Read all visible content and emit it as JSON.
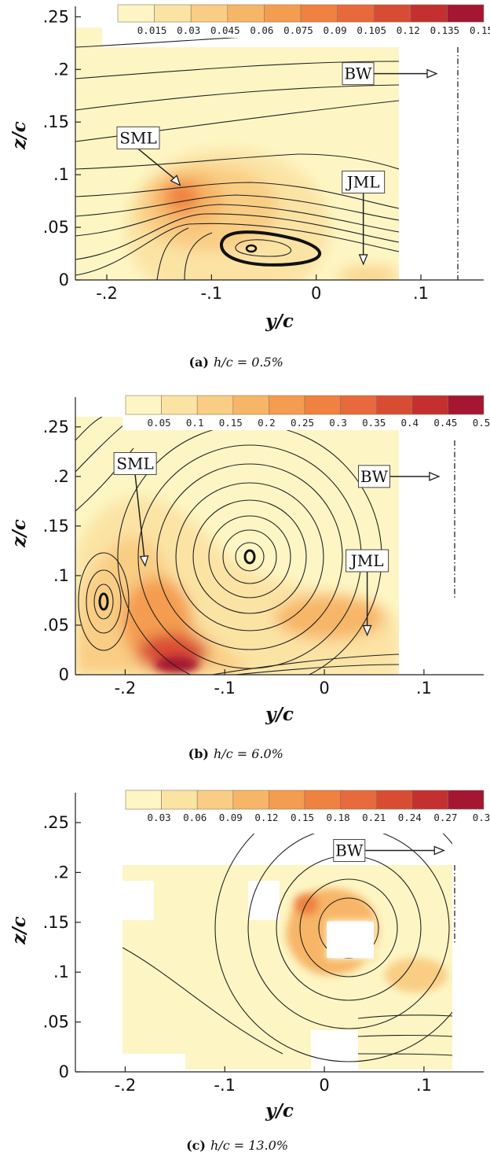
{
  "colors": {
    "scale": [
      "#fdf6c4",
      "#fbe3a4",
      "#f9cd84",
      "#f7b568",
      "#f49c50",
      "#ef8141",
      "#e86a3c",
      "#d94c34",
      "#c3302f",
      "#a41631"
    ],
    "background": "#ffffff",
    "streamline": "#222222"
  },
  "chart_data": [
    {
      "type": "heatmap",
      "panel": "(a)",
      "caption_label": "(a)",
      "caption_text": "h/c = 0.5%",
      "xlabel": "y/c",
      "ylabel": "z/c",
      "xlim": [
        -0.23,
        0.16
      ],
      "ylim": [
        0,
        0.26
      ],
      "xticks": [
        -0.2,
        -0.1,
        0,
        0.1
      ],
      "xticklabels": [
        "-.2",
        "-.1",
        "0",
        ".1"
      ],
      "yticks": [
        0,
        0.05,
        0.1,
        0.15,
        0.2,
        0.25
      ],
      "yticklabels": [
        "0",
        ".05",
        ".1",
        ".15",
        ".2",
        ".25"
      ],
      "colorbar_ticks": [
        "0.015",
        "0.03",
        "0.045",
        "0.06",
        "0.075",
        "0.09",
        "0.105",
        "0.12",
        "0.135",
        "0.15"
      ],
      "annotations": [
        {
          "text": "SML",
          "box": [
            -0.17,
            0.135
          ],
          "arrow_to": [
            -0.13,
            0.09
          ]
        },
        {
          "text": "JML",
          "box": [
            0.045,
            0.093
          ],
          "arrow_to": [
            0.045,
            0.015
          ]
        },
        {
          "text": "BW",
          "box": [
            0.04,
            0.196
          ],
          "arrow_to": [
            0.115,
            0.196
          ]
        }
      ],
      "reference_line_y": 0.13,
      "vortex_center": [
        -0.064,
        0.034
      ],
      "hotspots": [
        {
          "y": -0.12,
          "z": 0.08,
          "level": 6
        },
        {
          "y": -0.06,
          "z": 0.07,
          "level": 3
        },
        {
          "y": 0.05,
          "z": 0.01,
          "level": 1
        }
      ]
    },
    {
      "type": "heatmap",
      "panel": "(b)",
      "caption_label": "(b)",
      "caption_text": "h/c = 6.0%",
      "xlabel": "y/c",
      "ylabel": "z/c",
      "xlim": [
        -0.25,
        0.16
      ],
      "ylim": [
        0,
        0.28
      ],
      "xticks": [
        -0.2,
        -0.1,
        0,
        0.1
      ],
      "xticklabels": [
        "-.2",
        "-.1",
        "0",
        ".1"
      ],
      "yticks": [
        0,
        0.05,
        0.1,
        0.15,
        0.2,
        0.25
      ],
      "yticklabels": [
        "0",
        ".05",
        ".1",
        ".15",
        ".2",
        ".25"
      ],
      "colorbar_ticks": [
        "0.05",
        "0.1",
        "0.15",
        "0.2",
        "0.25",
        "0.3",
        "0.35",
        "0.4",
        "0.45",
        "0.5"
      ],
      "annotations": [
        {
          "text": "SML",
          "box": [
            -0.19,
            0.213
          ],
          "arrow_to": [
            -0.18,
            0.11
          ]
        },
        {
          "text": "JML",
          "box": [
            0.043,
            0.115
          ],
          "arrow_to": [
            0.043,
            0.04
          ]
        },
        {
          "text": "BW",
          "box": [
            0.05,
            0.2
          ],
          "arrow_to": [
            0.115,
            0.2
          ]
        }
      ],
      "reference_line_y": 0.13,
      "vortex_centers": [
        [
          -0.075,
          0.102
        ],
        [
          -0.225,
          0.055
        ]
      ],
      "hotspots": [
        {
          "y": -0.15,
          "z": 0.02,
          "level": 9
        },
        {
          "y": -0.17,
          "z": 0.07,
          "level": 5
        },
        {
          "y": -0.01,
          "z": 0.04,
          "level": 3
        }
      ]
    },
    {
      "type": "heatmap",
      "panel": "(c)",
      "caption_label": "(c)",
      "caption_text": "h/c = 13.0%",
      "xlabel": "y/c",
      "ylabel": "z/c",
      "xlim": [
        -0.25,
        0.16
      ],
      "ylim": [
        0,
        0.28
      ],
      "xticks": [
        -0.2,
        -0.1,
        0,
        0.1
      ],
      "xticklabels": [
        "-.2",
        "-.1",
        "0",
        ".1"
      ],
      "yticks": [
        0,
        0.05,
        0.1,
        0.15,
        0.2,
        0.25
      ],
      "yticklabels": [
        "0",
        ".05",
        ".1",
        ".15",
        ".2",
        ".25"
      ],
      "colorbar_ticks": [
        "0.03",
        "0.06",
        "0.09",
        "0.12",
        "0.15",
        "0.18",
        "0.21",
        "0.24",
        "0.27",
        "0.3"
      ],
      "annotations": [
        {
          "text": "BW",
          "box": [
            0.025,
            0.222
          ],
          "arrow_to": [
            0.12,
            0.222
          ]
        }
      ],
      "reference_line_y": 0.13,
      "vortex_center": [
        0.025,
        0.16
      ],
      "hotspots": [
        {
          "y": -0.02,
          "z": 0.14,
          "level": 5
        },
        {
          "y": 0.05,
          "z": 0.15,
          "level": 4
        },
        {
          "y": 0.1,
          "z": 0.1,
          "level": 3
        }
      ]
    }
  ]
}
